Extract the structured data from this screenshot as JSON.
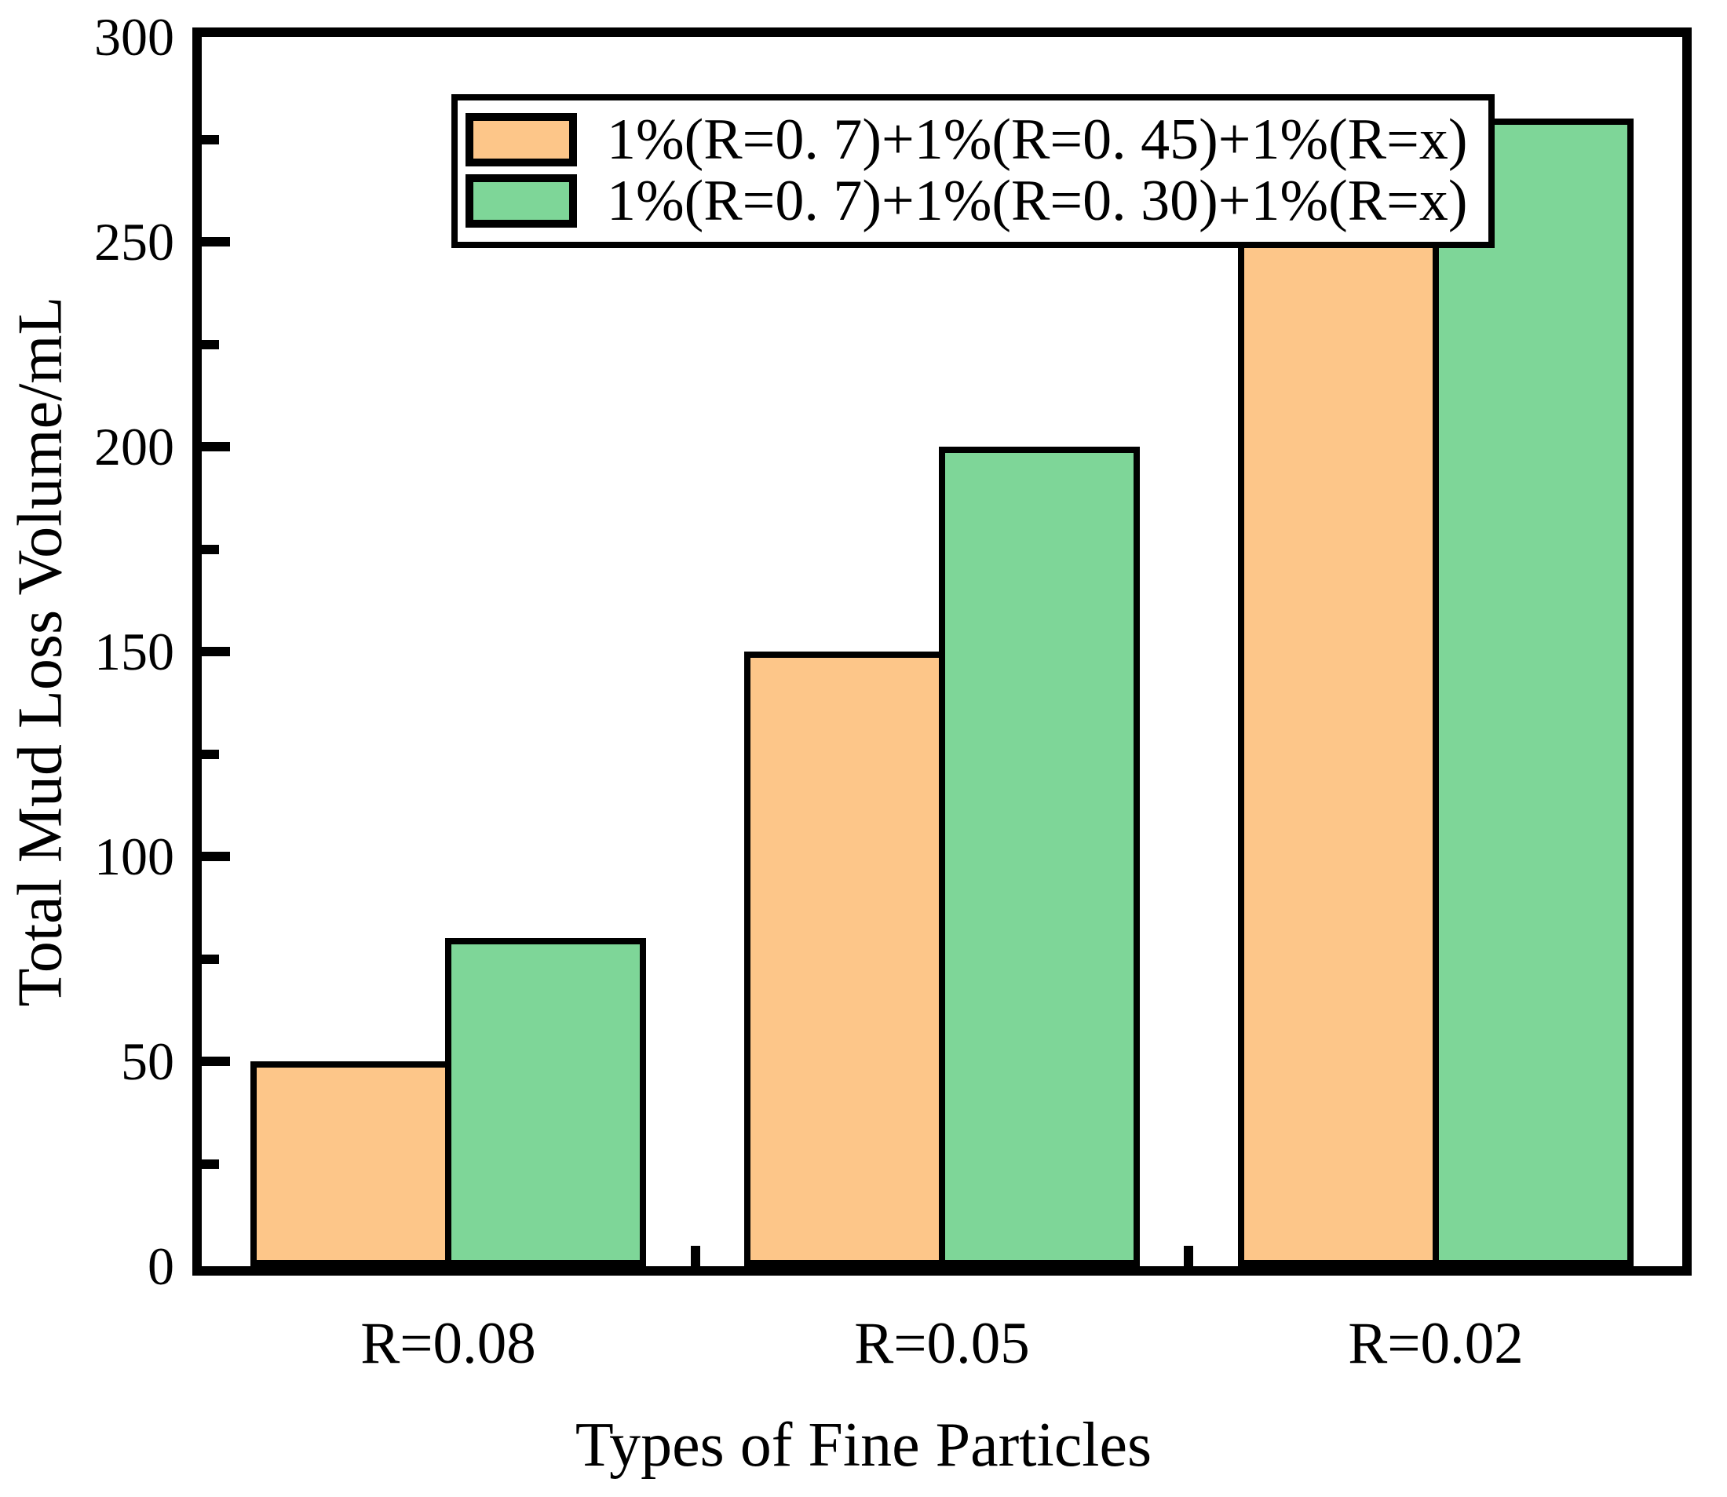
{
  "chart_data": {
    "type": "bar",
    "title": "",
    "xlabel": "Types of Fine Particles",
    "ylabel": "Total Mud Loss Volume/mL",
    "categories": [
      "R=0.08",
      "R=0.05",
      "R=0.02"
    ],
    "series": [
      {
        "name": "1%(R=0. 7)+1%(R=0. 45)+1%(R=x)",
        "color": "#FDC689",
        "values": [
          50,
          150,
          280
        ]
      },
      {
        "name": "1%(R=0. 7)+1%(R=0. 30)+1%(R=x)",
        "color": "#7ED698",
        "values": [
          80,
          200,
          280
        ]
      }
    ],
    "ylim": [
      0,
      300
    ],
    "ytick_step": 50,
    "yminor_step": 25,
    "y_tick_labels": [
      "0",
      "50",
      "100",
      "150",
      "200",
      "250",
      "300"
    ],
    "grid": false,
    "legend_position": "top-left",
    "bar_edge_color": "#000000",
    "frame_color": "#000000",
    "background_color": "#ffffff"
  }
}
